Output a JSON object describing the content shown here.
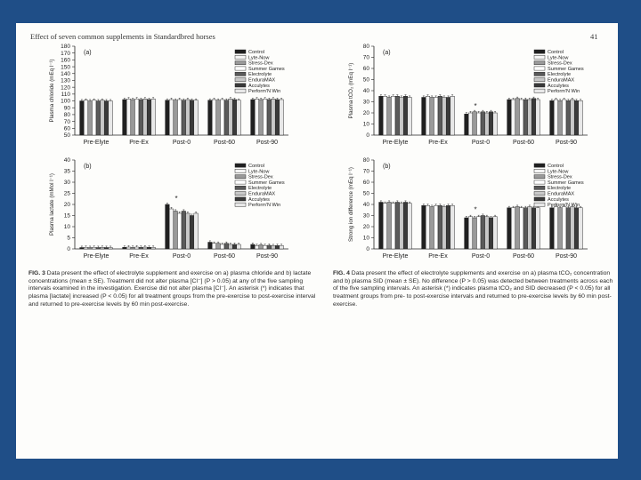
{
  "page": {
    "title": "Effect of seven common supplements in Standardbred horses",
    "page_number": "41"
  },
  "treatments": [
    "Control",
    "Lyte-Now",
    "Stress-Dex",
    "Summer Games",
    "Electrolyte",
    "EnduraMAX",
    "Acculytes",
    "Perform'N Win"
  ],
  "bar_colors": [
    "#202020",
    "#f4f4f4",
    "#9a9a9a",
    "#ffffff",
    "#5a5a5a",
    "#c8c8c8",
    "#3a3a3a",
    "#e8e8e8"
  ],
  "chart_data": [
    {
      "type": "bar",
      "panel": "(a)",
      "title": "",
      "xlabel": "",
      "ylabel": "Plasma chloride (mEq l⁻¹)",
      "ylim": [
        50,
        180
      ],
      "yticks": [
        50,
        60,
        70,
        80,
        90,
        100,
        110,
        120,
        130,
        140,
        150,
        160,
        170,
        "180"
      ],
      "categories": [
        "Pre-Elyte",
        "Pre-Ex",
        "Post-0",
        "Post-60",
        "Post-90"
      ],
      "series_values": [
        [
          100,
          101,
          100,
          101,
          100,
          101,
          100,
          100
        ],
        [
          102,
          103,
          102,
          103,
          102,
          103,
          102,
          103
        ],
        [
          101,
          102,
          101,
          102,
          101,
          102,
          101,
          101
        ],
        [
          101,
          102,
          101,
          102,
          101,
          103,
          102,
          101
        ],
        [
          102,
          103,
          102,
          103,
          102,
          103,
          102,
          102
        ]
      ],
      "asterisks": []
    },
    {
      "type": "bar",
      "panel": "(b)",
      "title": "",
      "xlabel": "",
      "ylabel": "Plasma lactate (mMol l⁻¹)",
      "ylim": [
        0,
        40
      ],
      "yticks": [
        0,
        5,
        10,
        15,
        20,
        25,
        30,
        35,
        40
      ],
      "categories": [
        "Pre-Elyte",
        "Pre-Ex",
        "Post-0",
        "Post-60",
        "Post-90"
      ],
      "series_values": [
        [
          0.6,
          0.7,
          0.6,
          0.7,
          0.6,
          0.7,
          0.6,
          0.6
        ],
        [
          0.7,
          0.8,
          0.7,
          0.8,
          0.7,
          0.8,
          0.7,
          0.7
        ],
        [
          20,
          18,
          17,
          16,
          17,
          16,
          15,
          16
        ],
        [
          3,
          2.5,
          2.5,
          2,
          2.5,
          2,
          2,
          2
        ],
        [
          2,
          1.5,
          1.8,
          1.5,
          1.6,
          1.4,
          1.5,
          1.5
        ]
      ],
      "asterisks": [
        "Post-0"
      ]
    },
    {
      "type": "bar",
      "panel": "(a)",
      "title": "",
      "xlabel": "",
      "ylabel": "Plasma tCO₂ (mEq l⁻¹)",
      "ylim": [
        0,
        80
      ],
      "yticks": [
        0,
        10,
        20,
        30,
        40,
        50,
        60,
        70,
        80
      ],
      "categories": [
        "Pre-Elyte",
        "Pre-Ex",
        "Post-0",
        "Post-60",
        "Post-90"
      ],
      "series_values": [
        [
          35,
          35,
          34,
          35,
          35,
          34,
          35,
          34
        ],
        [
          34,
          35,
          34,
          34,
          35,
          34,
          34,
          35
        ],
        [
          19,
          20,
          21,
          20,
          21,
          20,
          21,
          20
        ],
        [
          32,
          32,
          33,
          32,
          32,
          32,
          33,
          32
        ],
        [
          31,
          32,
          31,
          32,
          31,
          32,
          31,
          31
        ]
      ],
      "asterisks": [
        "Post-0"
      ]
    },
    {
      "type": "bar",
      "panel": "(b)",
      "title": "",
      "xlabel": "",
      "ylabel": "Strong ion difference (mEq l⁻¹)",
      "ylim": [
        0,
        80
      ],
      "yticks": [
        0,
        10,
        20,
        30,
        40,
        50,
        60,
        70,
        80
      ],
      "categories": [
        "Pre-Elyte",
        "Pre-Ex",
        "Post-0",
        "Post-60",
        "Post-90"
      ],
      "series_values": [
        [
          42,
          41,
          42,
          41,
          42,
          41,
          42,
          41
        ],
        [
          39,
          39,
          38,
          39,
          39,
          38,
          39,
          39
        ],
        [
          28,
          29,
          28,
          29,
          30,
          29,
          28,
          29
        ],
        [
          37,
          37,
          38,
          37,
          37,
          38,
          37,
          37
        ],
        [
          37,
          38,
          37,
          38,
          37,
          38,
          37,
          37
        ]
      ],
      "asterisks": [
        "Post-0"
      ]
    }
  ],
  "captions": {
    "fig3_label": "FIG. 3",
    "fig3_text": "Data present the effect of electrolyte supplement and exercise on a) plasma chloride and b) lactate concentrations (mean ± SE). Treatment did not alter plasma [Cl⁻] (P > 0.05) at any of the five sampling intervals examined in the investigation. Exercise did not alter plasma [Cl⁻]. An asterisk (*) indicates that plasma [lactate] increased (P < 0.05) for all treatment groups from the pre-exercise to post-exercise interval and returned to pre-exercise levels by 60 min post-exercise.",
    "fig4_label": "FIG. 4",
    "fig4_text": "Data present the effect of electrolyte supplements and exercise on a) plasma tCO₂ concentration and b) plasma SID (mean ± SE). No difference (P > 0.05) was detected between treatments across each of the five sampling intervals. An asterisk (*) indicates plasma tCO₂ and SID decreased (P < 0.05) for all treatment groups from pre- to post-exercise intervals and returned to pre-exercise levels by 60 min post-exercise."
  }
}
